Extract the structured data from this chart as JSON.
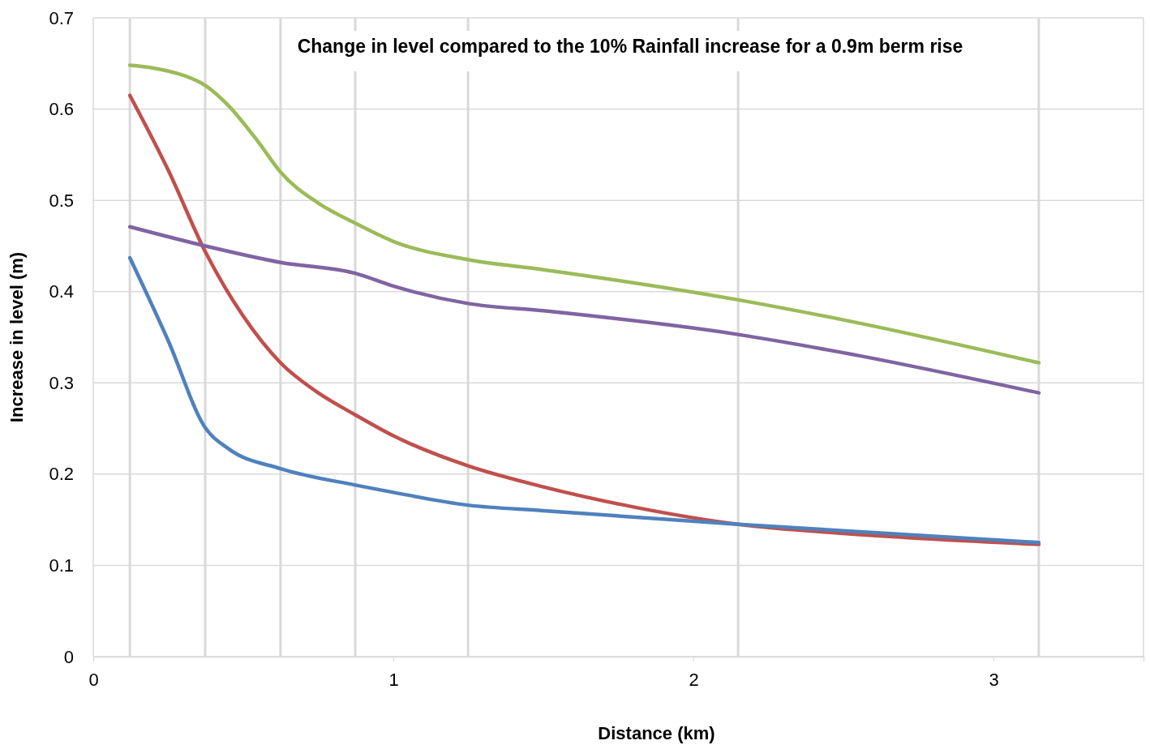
{
  "chart_data": {
    "type": "line",
    "title": "Change in level compared to the 10% Rainfall increase for a 0.9m berm rise",
    "xlabel": "Distance (km)",
    "ylabel": "Increase in level (m)",
    "xlim": [
      0,
      3.5
    ],
    "xticks": [
      0,
      1,
      2,
      3
    ],
    "ylim": [
      0,
      0.7
    ],
    "yticks": [
      0,
      0.1,
      0.2,
      0.3,
      0.4,
      0.5,
      0.6,
      0.7
    ],
    "grid": "y",
    "marker": "none",
    "line_style": "solid",
    "ref_lines": [
      {
        "axis": "x",
        "value": 0.122,
        "color": "#d9d9d9"
      },
      {
        "axis": "x",
        "value": 0.373,
        "color": "#d9d9d9"
      },
      {
        "axis": "x",
        "value": 0.624,
        "color": "#d9d9d9"
      },
      {
        "axis": "x",
        "value": 0.873,
        "color": "#d9d9d9"
      },
      {
        "axis": "x",
        "value": 1.249,
        "color": "#d9d9d9"
      },
      {
        "axis": "x",
        "value": 2.149,
        "color": "#d9d9d9"
      },
      {
        "axis": "x",
        "value": 3.151,
        "color": "#d9d9d9"
      }
    ],
    "series": [
      {
        "color": "#9bbb59",
        "x": [
          0.122,
          0.2,
          0.3,
          0.373,
          0.45,
          0.55,
          0.624,
          0.75,
          0.873,
          1.0,
          1.249,
          1.5,
          2.149,
          2.5,
          3.151
        ],
        "values": [
          0.648,
          0.645,
          0.637,
          0.626,
          0.604,
          0.564,
          0.531,
          0.497,
          0.475,
          0.455,
          0.435,
          0.424,
          0.391,
          0.369,
          0.322
        ]
      },
      {
        "color": "#c0504d",
        "x": [
          0.122,
          0.25,
          0.373,
          0.5,
          0.624,
          0.75,
          0.873,
          1.0,
          1.249,
          1.5,
          1.8,
          2.149,
          2.5,
          3.151
        ],
        "values": [
          0.615,
          0.533,
          0.444,
          0.373,
          0.322,
          0.289,
          0.265,
          0.242,
          0.209,
          0.186,
          0.164,
          0.145,
          0.135,
          0.123
        ]
      },
      {
        "color": "#8064a2",
        "x": [
          0.122,
          0.373,
          0.624,
          0.873,
          1.0,
          1.249,
          1.5,
          2.149,
          2.5,
          3.151
        ],
        "values": [
          0.471,
          0.45,
          0.432,
          0.42,
          0.406,
          0.387,
          0.379,
          0.353,
          0.333,
          0.289
        ]
      },
      {
        "color": "#4f81bd",
        "x": [
          0.122,
          0.25,
          0.373,
          0.45,
          0.624,
          0.873,
          1.0,
          1.249,
          1.5,
          2.149,
          2.5,
          3.151
        ],
        "values": [
          0.437,
          0.346,
          0.251,
          0.228,
          0.206,
          0.188,
          0.18,
          0.166,
          0.16,
          0.145,
          0.138,
          0.125
        ]
      }
    ]
  }
}
